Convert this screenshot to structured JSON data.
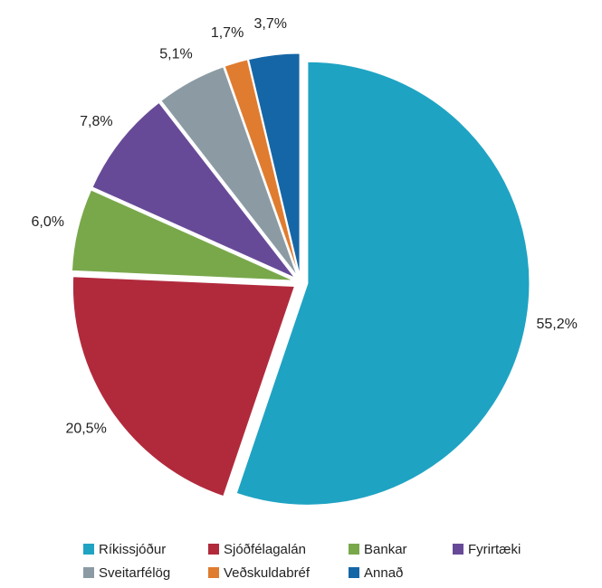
{
  "chart_data": {
    "type": "pie",
    "categories": [
      "Ríkissjóður",
      "Sjóðfélagalán",
      "Bankar",
      "Fyrirtæki",
      "Sveitarfélög",
      "Veðskuldabréf",
      "Annað"
    ],
    "values": [
      55.2,
      20.5,
      6.0,
      7.8,
      5.1,
      1.7,
      3.7
    ],
    "value_labels": [
      "55,2%",
      "20,5%",
      "6,0%",
      "7,8%",
      "5,1%",
      "1,7%",
      "3,7%"
    ],
    "colors": [
      "#1fa3c3",
      "#b12a3c",
      "#79a84b",
      "#674a97",
      "#8c9ba3",
      "#e07c2f",
      "#1566a6"
    ],
    "legend": "bottom"
  }
}
